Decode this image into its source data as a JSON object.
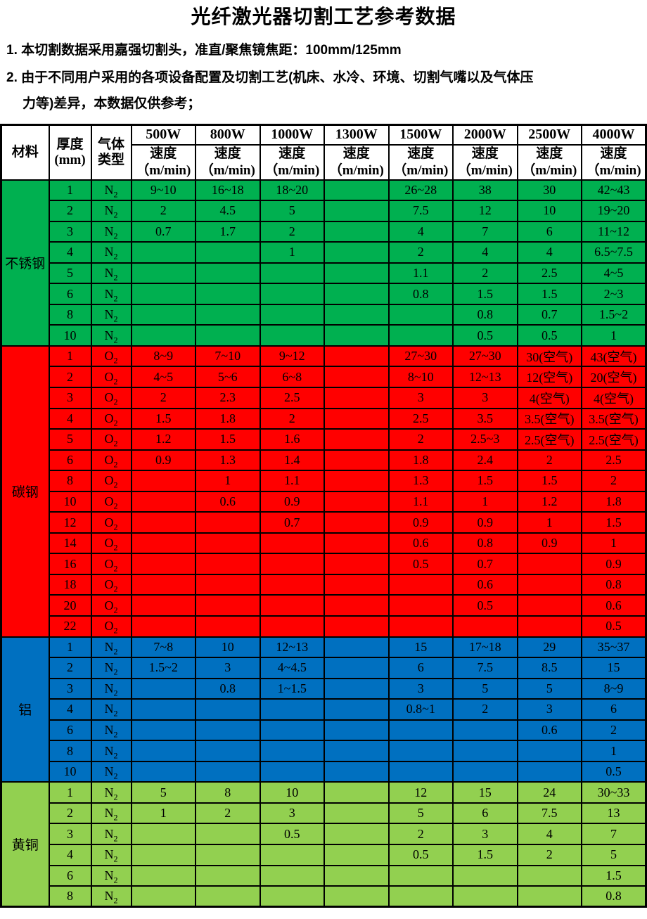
{
  "title": "光纤激光器切割工艺参考数据",
  "notes": [
    "1. 本切割数据采用嘉强切割头，准直/聚焦镜焦距：100mm/125mm",
    "2. 由于不同用户采用的各项设备配置及切割工艺(机床、水冷、环境、切割气嘴以及气体压",
    "力等)差异，本数据仅供参考；"
  ],
  "table": {
    "header": {
      "material": "材料",
      "thickness_line1": "厚度",
      "thickness_line2": "(mm)",
      "gas_line1": "气体",
      "gas_line2": "类型",
      "powers": [
        "500W",
        "800W",
        "1000W",
        "1300W",
        "1500W",
        "2000W",
        "2500W",
        "4000W"
      ],
      "speed_label": "速度",
      "speed_unit": "（m/min)"
    },
    "sections": [
      {
        "material": "不锈钢",
        "color": "#00B050",
        "gas": "N",
        "gas_sub": "2",
        "rows": [
          {
            "t": "1",
            "v": [
              "9~10",
              "16~18",
              "18~20",
              "",
              "26~28",
              "38",
              "30",
              "42~43"
            ]
          },
          {
            "t": "2",
            "v": [
              "2",
              "4.5",
              "5",
              "",
              "7.5",
              "12",
              "10",
              "19~20"
            ]
          },
          {
            "t": "3",
            "v": [
              "0.7",
              "1.7",
              "2",
              "",
              "4",
              "7",
              "6",
              "11~12"
            ]
          },
          {
            "t": "4",
            "v": [
              "",
              "",
              "1",
              "",
              "2",
              "4",
              "4",
              "6.5~7.5"
            ]
          },
          {
            "t": "5",
            "v": [
              "",
              "",
              "",
              "",
              "1.1",
              "2",
              "2.5",
              "4~5"
            ]
          },
          {
            "t": "6",
            "v": [
              "",
              "",
              "",
              "",
              "0.8",
              "1.5",
              "1.5",
              "2~3"
            ]
          },
          {
            "t": "8",
            "v": [
              "",
              "",
              "",
              "",
              "",
              "0.8",
              "0.7",
              "1.5~2"
            ]
          },
          {
            "t": "10",
            "v": [
              "",
              "",
              "",
              "",
              "",
              "0.5",
              "0.5",
              "1"
            ]
          }
        ]
      },
      {
        "material": "碳钢",
        "color": "#FF0000",
        "gas": "O",
        "gas_sub": "2",
        "rows": [
          {
            "t": "1",
            "v": [
              "8~9",
              "7~10",
              "9~12",
              "",
              "27~30",
              "27~30",
              "30(空气)",
              "43(空气)"
            ]
          },
          {
            "t": "2",
            "v": [
              "4~5",
              "5~6",
              "6~8",
              "",
              "8~10",
              "12~13",
              "12(空气)",
              "20(空气)"
            ]
          },
          {
            "t": "3",
            "v": [
              "2",
              "2.3",
              "2.5",
              "",
              "3",
              "3",
              "4(空气)",
              "4(空气)"
            ]
          },
          {
            "t": "4",
            "v": [
              "1.5",
              "1.8",
              "2",
              "",
              "2.5",
              "3.5",
              "3.5(空气)",
              "3.5(空气)"
            ]
          },
          {
            "t": "5",
            "v": [
              "1.2",
              "1.5",
              "1.6",
              "",
              "2",
              "2.5~3",
              "2.5(空气)",
              "2.5(空气)"
            ]
          },
          {
            "t": "6",
            "v": [
              "0.9",
              "1.3",
              "1.4",
              "",
              "1.8",
              "2.4",
              "2",
              "2.5"
            ]
          },
          {
            "t": "8",
            "v": [
              "",
              "1",
              "1.1",
              "",
              "1.3",
              "1.5",
              "1.5",
              "2"
            ]
          },
          {
            "t": "10",
            "v": [
              "",
              "0.6",
              "0.9",
              "",
              "1.1",
              "1",
              "1.2",
              "1.8"
            ]
          },
          {
            "t": "12",
            "v": [
              "",
              "",
              "0.7",
              "",
              "0.9",
              "0.9",
              "1",
              "1.5"
            ]
          },
          {
            "t": "14",
            "v": [
              "",
              "",
              "",
              "",
              "0.6",
              "0.8",
              "0.9",
              "1"
            ]
          },
          {
            "t": "16",
            "v": [
              "",
              "",
              "",
              "",
              "0.5",
              "0.7",
              "",
              "0.9"
            ]
          },
          {
            "t": "18",
            "v": [
              "",
              "",
              "",
              "",
              "",
              "0.6",
              "",
              "0.8"
            ]
          },
          {
            "t": "20",
            "v": [
              "",
              "",
              "",
              "",
              "",
              "0.5",
              "",
              "0.6"
            ]
          },
          {
            "t": "22",
            "v": [
              "",
              "",
              "",
              "",
              "",
              "",
              "",
              "0.5"
            ]
          }
        ]
      },
      {
        "material": "铝",
        "color": "#0070C0",
        "gas": "N",
        "gas_sub": "2",
        "rows": [
          {
            "t": "1",
            "v": [
              "7~8",
              "10",
              "12~13",
              "",
              "15",
              "17~18",
              "29",
              "35~37"
            ]
          },
          {
            "t": "2",
            "v": [
              "1.5~2",
              "3",
              "4~4.5",
              "",
              "6",
              "7.5",
              "8.5",
              "15"
            ]
          },
          {
            "t": "3",
            "v": [
              "",
              "0.8",
              "1~1.5",
              "",
              "3",
              "5",
              "5",
              "8~9"
            ]
          },
          {
            "t": "4",
            "v": [
              "",
              "",
              "",
              "",
              "0.8~1",
              "2",
              "3",
              "6"
            ]
          },
          {
            "t": "6",
            "v": [
              "",
              "",
              "",
              "",
              "",
              "",
              "0.6",
              "2"
            ]
          },
          {
            "t": "8",
            "v": [
              "",
              "",
              "",
              "",
              "",
              "",
              "",
              "1"
            ]
          },
          {
            "t": "10",
            "v": [
              "",
              "",
              "",
              "",
              "",
              "",
              "",
              "0.5"
            ]
          }
        ]
      },
      {
        "material": "黄铜",
        "color": "#92D050",
        "gas": "N",
        "gas_sub": "2",
        "rows": [
          {
            "t": "1",
            "v": [
              "5",
              "8",
              "10",
              "",
              "12",
              "15",
              "24",
              "30~33"
            ]
          },
          {
            "t": "2",
            "v": [
              "1",
              "2",
              "3",
              "",
              "5",
              "6",
              "7.5",
              "13"
            ]
          },
          {
            "t": "3",
            "v": [
              "",
              "",
              "0.5",
              "",
              "2",
              "3",
              "4",
              "7"
            ]
          },
          {
            "t": "4",
            "v": [
              "",
              "",
              "",
              "",
              "0.5",
              "1.5",
              "2",
              "5"
            ]
          },
          {
            "t": "6",
            "v": [
              "",
              "",
              "",
              "",
              "",
              "",
              "",
              "1.5"
            ]
          },
          {
            "t": "8",
            "v": [
              "",
              "",
              "",
              "",
              "",
              "",
              "",
              "0.8"
            ]
          }
        ]
      }
    ]
  }
}
